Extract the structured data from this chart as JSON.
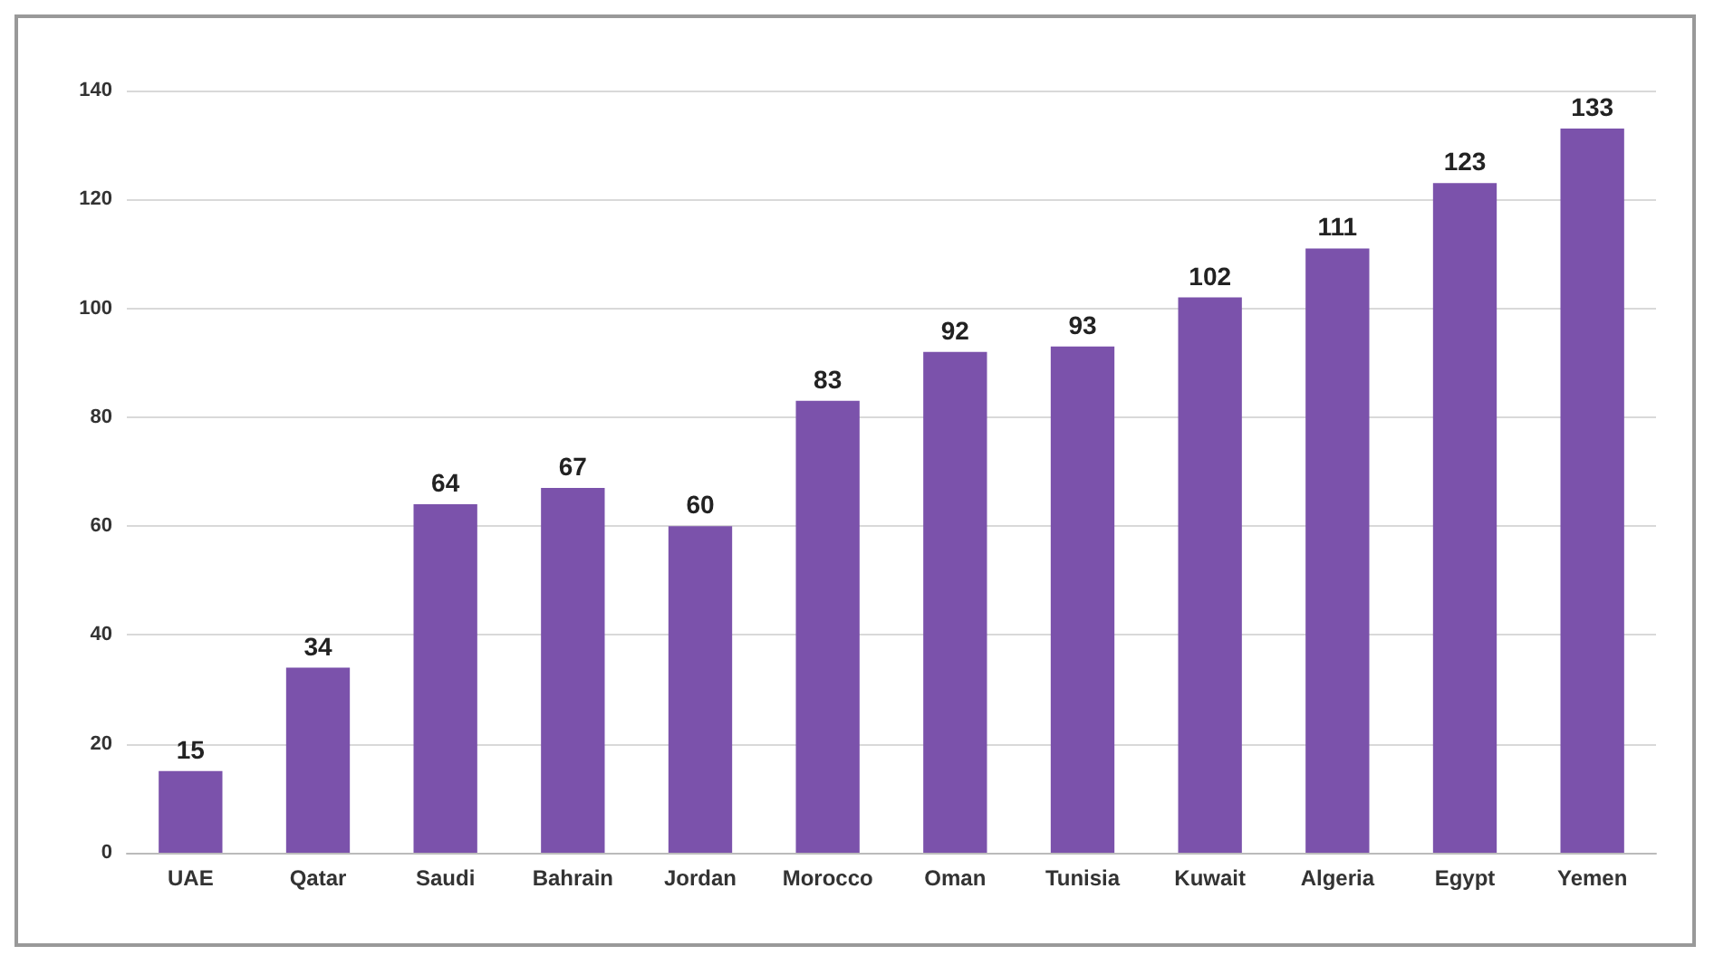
{
  "chart_data": {
    "type": "bar",
    "categories": [
      "UAE",
      "Qatar",
      "Saudi",
      "Bahrain",
      "Jordan",
      "Morocco",
      "Oman",
      "Tunisia",
      "Kuwait",
      "Algeria",
      "Egypt",
      "Yemen"
    ],
    "values": [
      15,
      34,
      64,
      67,
      60,
      83,
      92,
      93,
      102,
      111,
      123,
      133
    ],
    "color": "#7b52ab",
    "ylim": [
      0,
      140
    ],
    "yticks": [
      0,
      20,
      40,
      60,
      80,
      100,
      120,
      140
    ],
    "grid": "y",
    "data_labels": true
  }
}
